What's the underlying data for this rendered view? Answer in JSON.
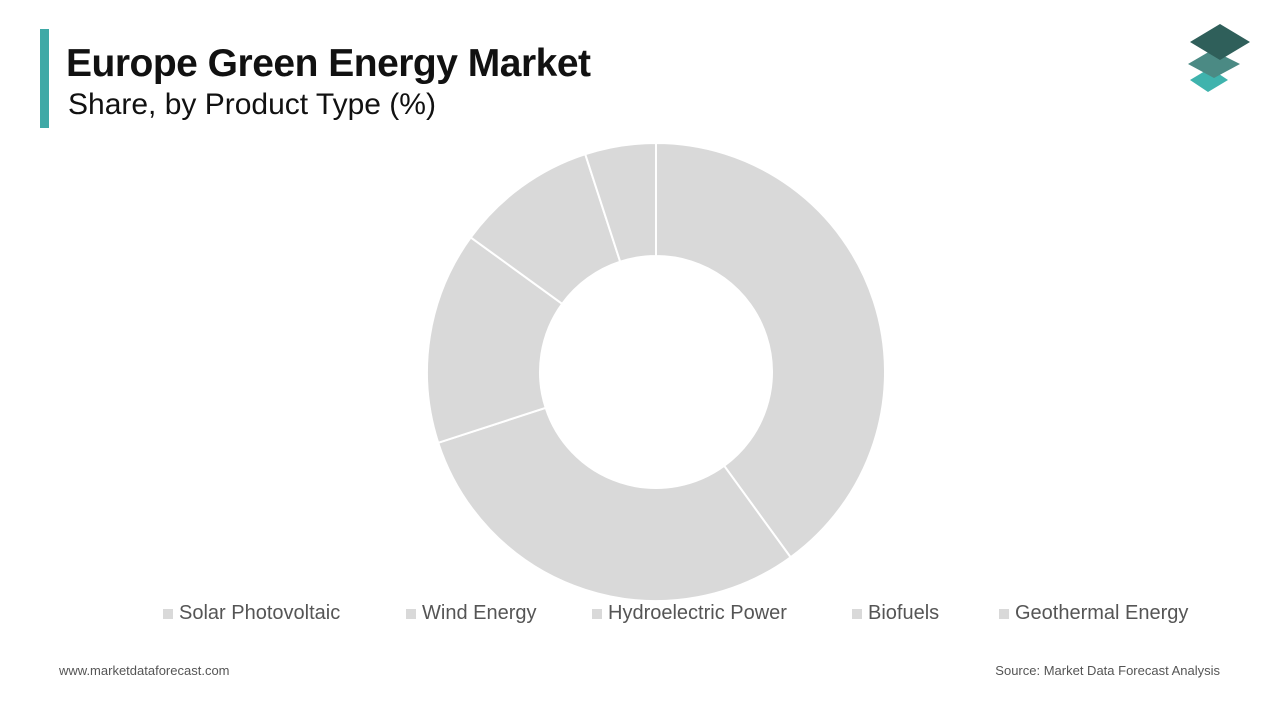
{
  "header": {
    "title": "Europe Green Energy Market",
    "subtitle": "Share, by Product Type (%)"
  },
  "footer": {
    "website": "www.marketdataforecast.com",
    "source": "Source: Market Data Forecast Analysis"
  },
  "colors": {
    "accent": "#3fa9a6",
    "slice": "#d9d9d9",
    "separator": "#ffffff",
    "logo": [
      "#2f5f5a",
      "#4b8a84",
      "#3fb3ad"
    ]
  },
  "chart_data": {
    "type": "pie",
    "variant": "donut",
    "title": "Europe Green Energy Market",
    "subtitle": "Share, by Product Type (%)",
    "categories": [
      "Solar Photovoltaic",
      "Wind Energy",
      "Hydroelectric Power",
      "Biofuels",
      "Geothermal Energy"
    ],
    "values": [
      40,
      30,
      15,
      10,
      5
    ],
    "legend_position": "bottom",
    "start_angle": "top, clockwise"
  }
}
